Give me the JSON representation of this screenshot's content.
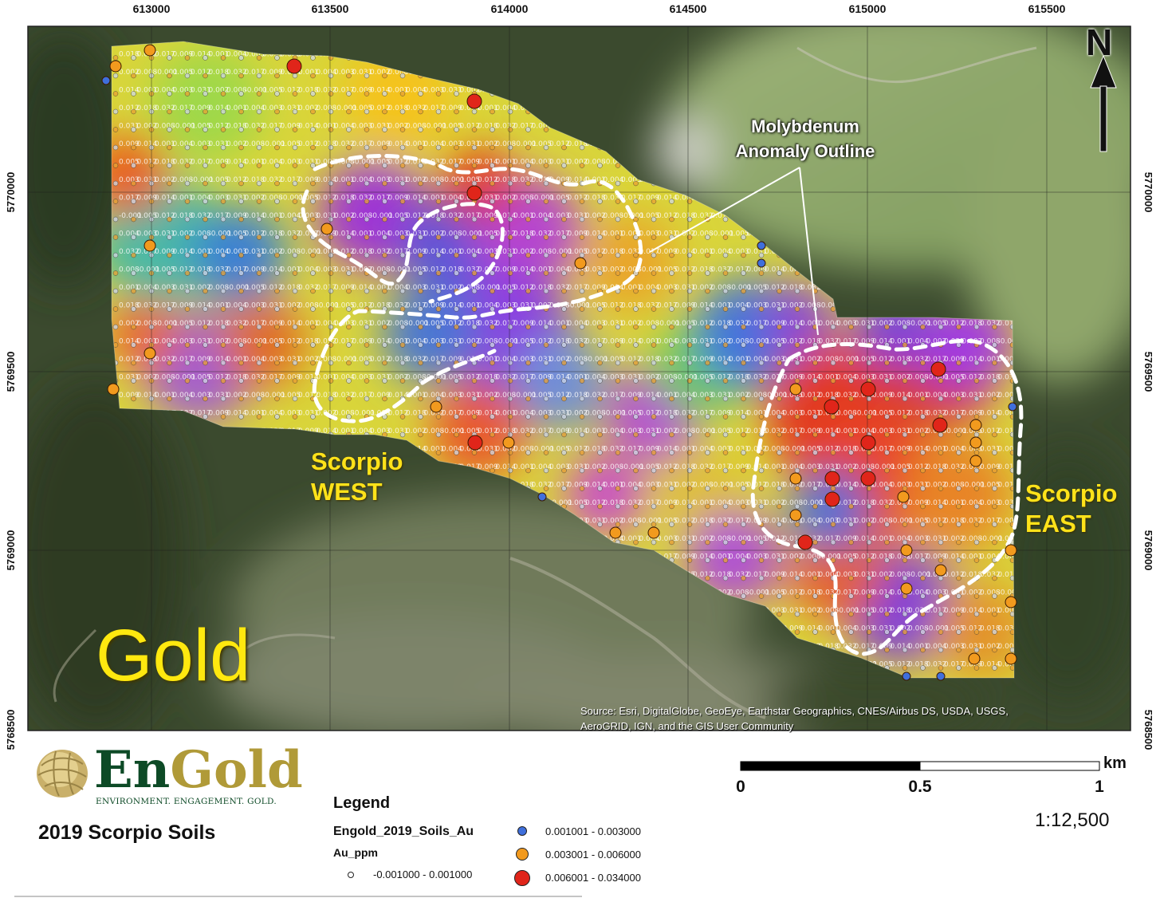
{
  "map": {
    "element_label": "Gold",
    "areas": [
      {
        "name_line1": "Scorpio",
        "name_line2": "WEST"
      },
      {
        "name_line1": "Scorpio",
        "name_line2": "EAST"
      }
    ],
    "annotation_line1": "Molybdenum",
    "annotation_line2": "Anomaly Outline",
    "source_line1": "Source: Esri, DigitalGlobe, GeoEye, Earthstar Geographics, CNES/Airbus DS, USDA, USGS,",
    "source_line2": "AeroGRID, IGN, and the GIS User Community",
    "north_arrow": {
      "letter": "N",
      "icon": "north-arrow-icon"
    },
    "easting_ticks": [
      "613000",
      "613500",
      "614000",
      "614500",
      "615000",
      "615500"
    ],
    "northing_ticks": [
      "5770000",
      "5769500",
      "5769000",
      "5768500"
    ]
  },
  "logo": {
    "word_en": "En",
    "word_gold": "Gold",
    "tagline": "ENVIRONMENT. ENGAGEMENT. GOLD.",
    "icon": "gold-nugget-logo-icon"
  },
  "title": "2019 Scorpio Soils",
  "legend": {
    "title": "Legend",
    "layer": "Engold_2019_Soils_Au",
    "field": "Au_ppm",
    "classes": [
      {
        "label": "-0.001000 - 0.001000",
        "color": "#ffffff"
      },
      {
        "label": "0.001001 - 0.003000",
        "color": "#3f6fdc"
      },
      {
        "label": "0.003001 - 0.006000",
        "color": "#f29a1e"
      },
      {
        "label": "0.006001 - 0.034000",
        "color": "#e0251a"
      }
    ]
  },
  "scale_bar": {
    "labels": [
      "0",
      "0.5",
      "1"
    ],
    "unit": "km",
    "ratio": "1:12,500"
  },
  "sample_labels": [
    "0.001",
    "0.004",
    "0.003",
    "0.031",
    "0.002",
    "0.008",
    "-0.001",
    "0.005",
    "0.012",
    "0.018",
    "0.032",
    "0.017",
    "0.009",
    "0.014"
  ]
}
